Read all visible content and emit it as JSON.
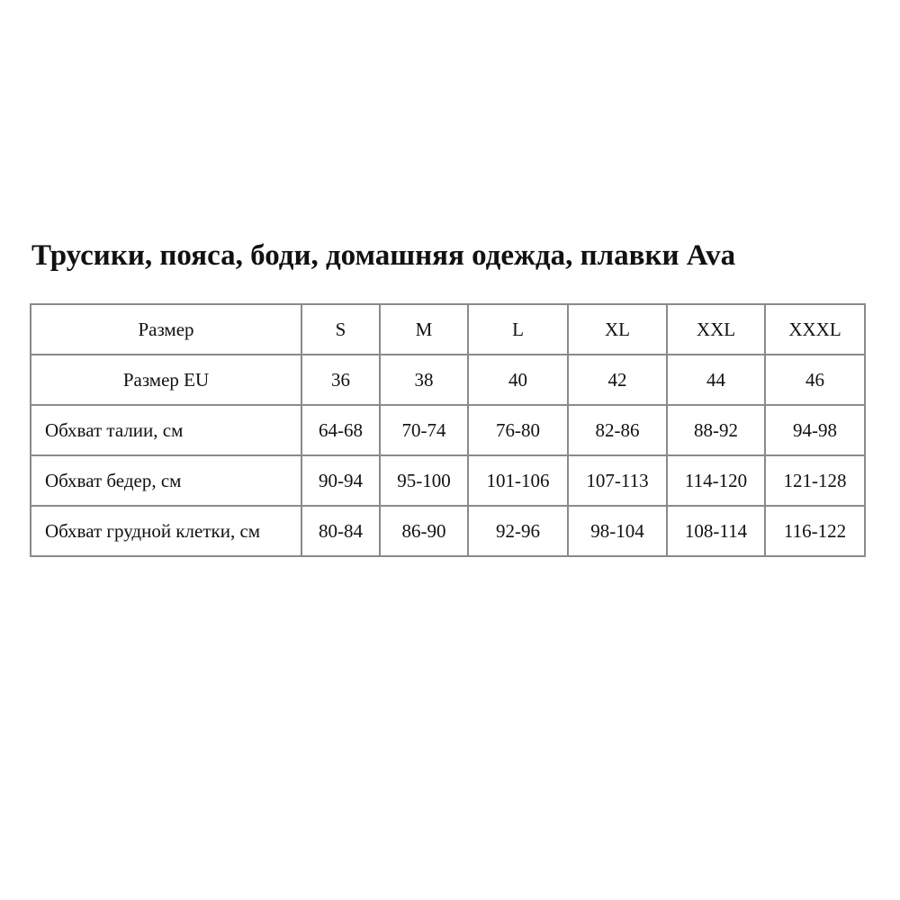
{
  "title": "Трусики, пояса, боди, домашняя одежда, плавки Ava",
  "table": {
    "rows": [
      {
        "label": "Размер",
        "cells": [
          "S",
          "M",
          "L",
          "XL",
          "XXL",
          "XXXL"
        ]
      },
      {
        "label": "Размер EU",
        "cells": [
          "36",
          "38",
          "40",
          "42",
          "44",
          "46"
        ]
      },
      {
        "label": "Обхват талии, см",
        "cells": [
          "64-68",
          "70-74",
          "76-80",
          "82-86",
          "88-92",
          "94-98"
        ]
      },
      {
        "label": "Обхват бедер, см",
        "cells": [
          "90-94",
          "95-100",
          "101-106",
          "107-113",
          "114-120",
          "121-128"
        ]
      },
      {
        "label": "Обхват грудной клетки, см",
        "cells": [
          "80-84",
          "86-90",
          "92-96",
          "98-104",
          "108-114",
          "116-122"
        ]
      }
    ]
  }
}
